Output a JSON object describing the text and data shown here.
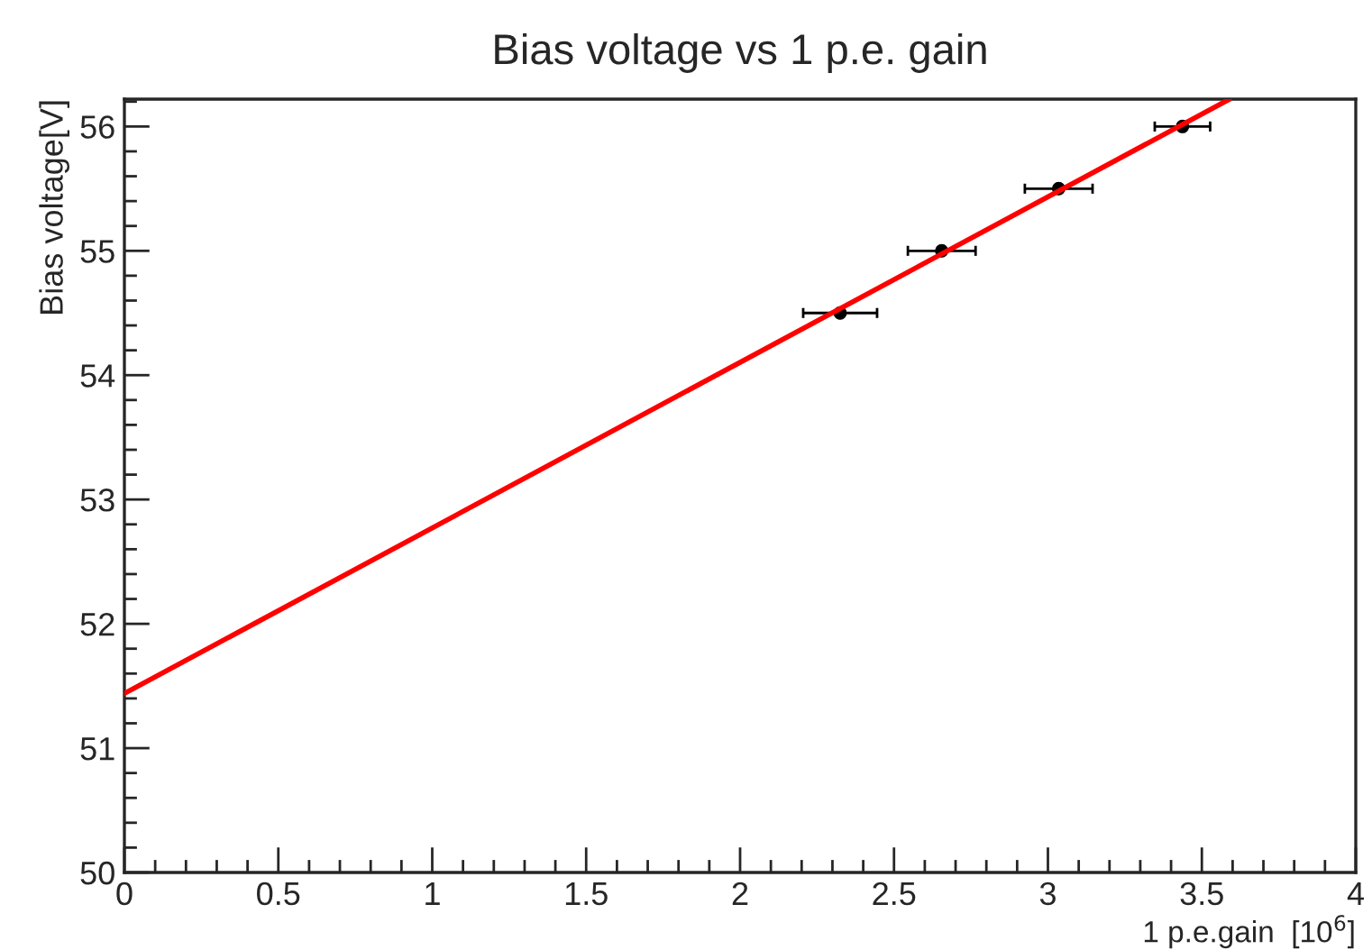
{
  "chart_data": {
    "type": "scatter",
    "title": "Bias voltage vs 1 p.e. gain",
    "xlabel": "1 p.e.gain  [10$^{6}$]",
    "ylabel": "Bias voltage[V]",
    "series": [
      {
        "color": "#000000",
        "x": [
          2.325,
          2.655,
          3.035,
          3.437
        ],
        "values": [
          54.5,
          55.0,
          55.5,
          56.0
        ],
        "xerrors": [
          0.12,
          0.11,
          0.11,
          0.09
        ],
        "marker": "circle"
      },
      {
        "type": "line",
        "color": "#ff0000",
        "x": [
          0,
          3.59
        ],
        "values": [
          51.44,
          56.22
        ],
        "marker": "none",
        "line_style": "solid"
      }
    ],
    "xlim": [
      0,
      4
    ],
    "ylim": [
      50,
      56.22
    ],
    "xticks": [
      0,
      {
        "value": 0.1,
        "label": null
      },
      {
        "value": 0.2,
        "label": null
      },
      {
        "value": 0.3,
        "label": null
      },
      {
        "value": 0.4,
        "label": null
      },
      0.5,
      {
        "value": 0.6,
        "label": null
      },
      {
        "value": 0.7,
        "label": null
      },
      {
        "value": 0.8,
        "label": null
      },
      {
        "value": 0.9,
        "label": null
      },
      1,
      {
        "value": 1.1,
        "label": null
      },
      {
        "value": 1.2,
        "label": null
      },
      {
        "value": 1.3,
        "label": null
      },
      {
        "value": 1.4,
        "label": null
      },
      1.5,
      {
        "value": 1.6,
        "label": null
      },
      {
        "value": 1.7,
        "label": null
      },
      {
        "value": 1.8,
        "label": null
      },
      {
        "value": 1.9,
        "label": null
      },
      2,
      {
        "value": 2.1,
        "label": null
      },
      {
        "value": 2.2,
        "label": null
      },
      {
        "value": 2.3,
        "label": null
      },
      {
        "value": 2.4,
        "label": null
      },
      2.5,
      {
        "value": 2.6,
        "label": null
      },
      {
        "value": 2.7,
        "label": null
      },
      {
        "value": 2.8,
        "label": null
      },
      {
        "value": 2.9,
        "label": null
      },
      3,
      {
        "value": 3.1,
        "label": null
      },
      {
        "value": 3.2,
        "label": null
      },
      {
        "value": 3.3,
        "label": null
      },
      {
        "value": 3.4,
        "label": null
      },
      3.5,
      {
        "value": 3.6,
        "label": null
      },
      {
        "value": 3.7,
        "label": null
      },
      {
        "value": 3.8,
        "label": null
      },
      {
        "value": 3.9,
        "label": null
      },
      4
    ],
    "yticks": [
      50,
      {
        "value": 50.2,
        "label": null
      },
      {
        "value": 50.4,
        "label": null
      },
      {
        "value": 50.6,
        "label": null
      },
      {
        "value": 50.8,
        "label": null
      },
      51,
      {
        "value": 51.2,
        "label": null
      },
      {
        "value": 51.4,
        "label": null
      },
      {
        "value": 51.6,
        "label": null
      },
      {
        "value": 51.8,
        "label": null
      },
      52,
      {
        "value": 52.2,
        "label": null
      },
      {
        "value": 52.4,
        "label": null
      },
      {
        "value": 52.6,
        "label": null
      },
      {
        "value": 52.8,
        "label": null
      },
      53,
      {
        "value": 53.2,
        "label": null
      },
      {
        "value": 53.4,
        "label": null
      },
      {
        "value": 53.6,
        "label": null
      },
      {
        "value": 53.8,
        "label": null
      },
      54,
      {
        "value": 54.2,
        "label": null
      },
      {
        "value": 54.4,
        "label": null
      },
      {
        "value": 54.6,
        "label": null
      },
      {
        "value": 54.8,
        "label": null
      },
      55,
      {
        "value": 55.2,
        "label": null
      },
      {
        "value": 55.4,
        "label": null
      },
      {
        "value": 55.6,
        "label": null
      },
      {
        "value": 55.8,
        "label": null
      },
      56,
      {
        "value": 56.2,
        "label": null
      }
    ],
    "grid": false,
    "legend": false
  }
}
